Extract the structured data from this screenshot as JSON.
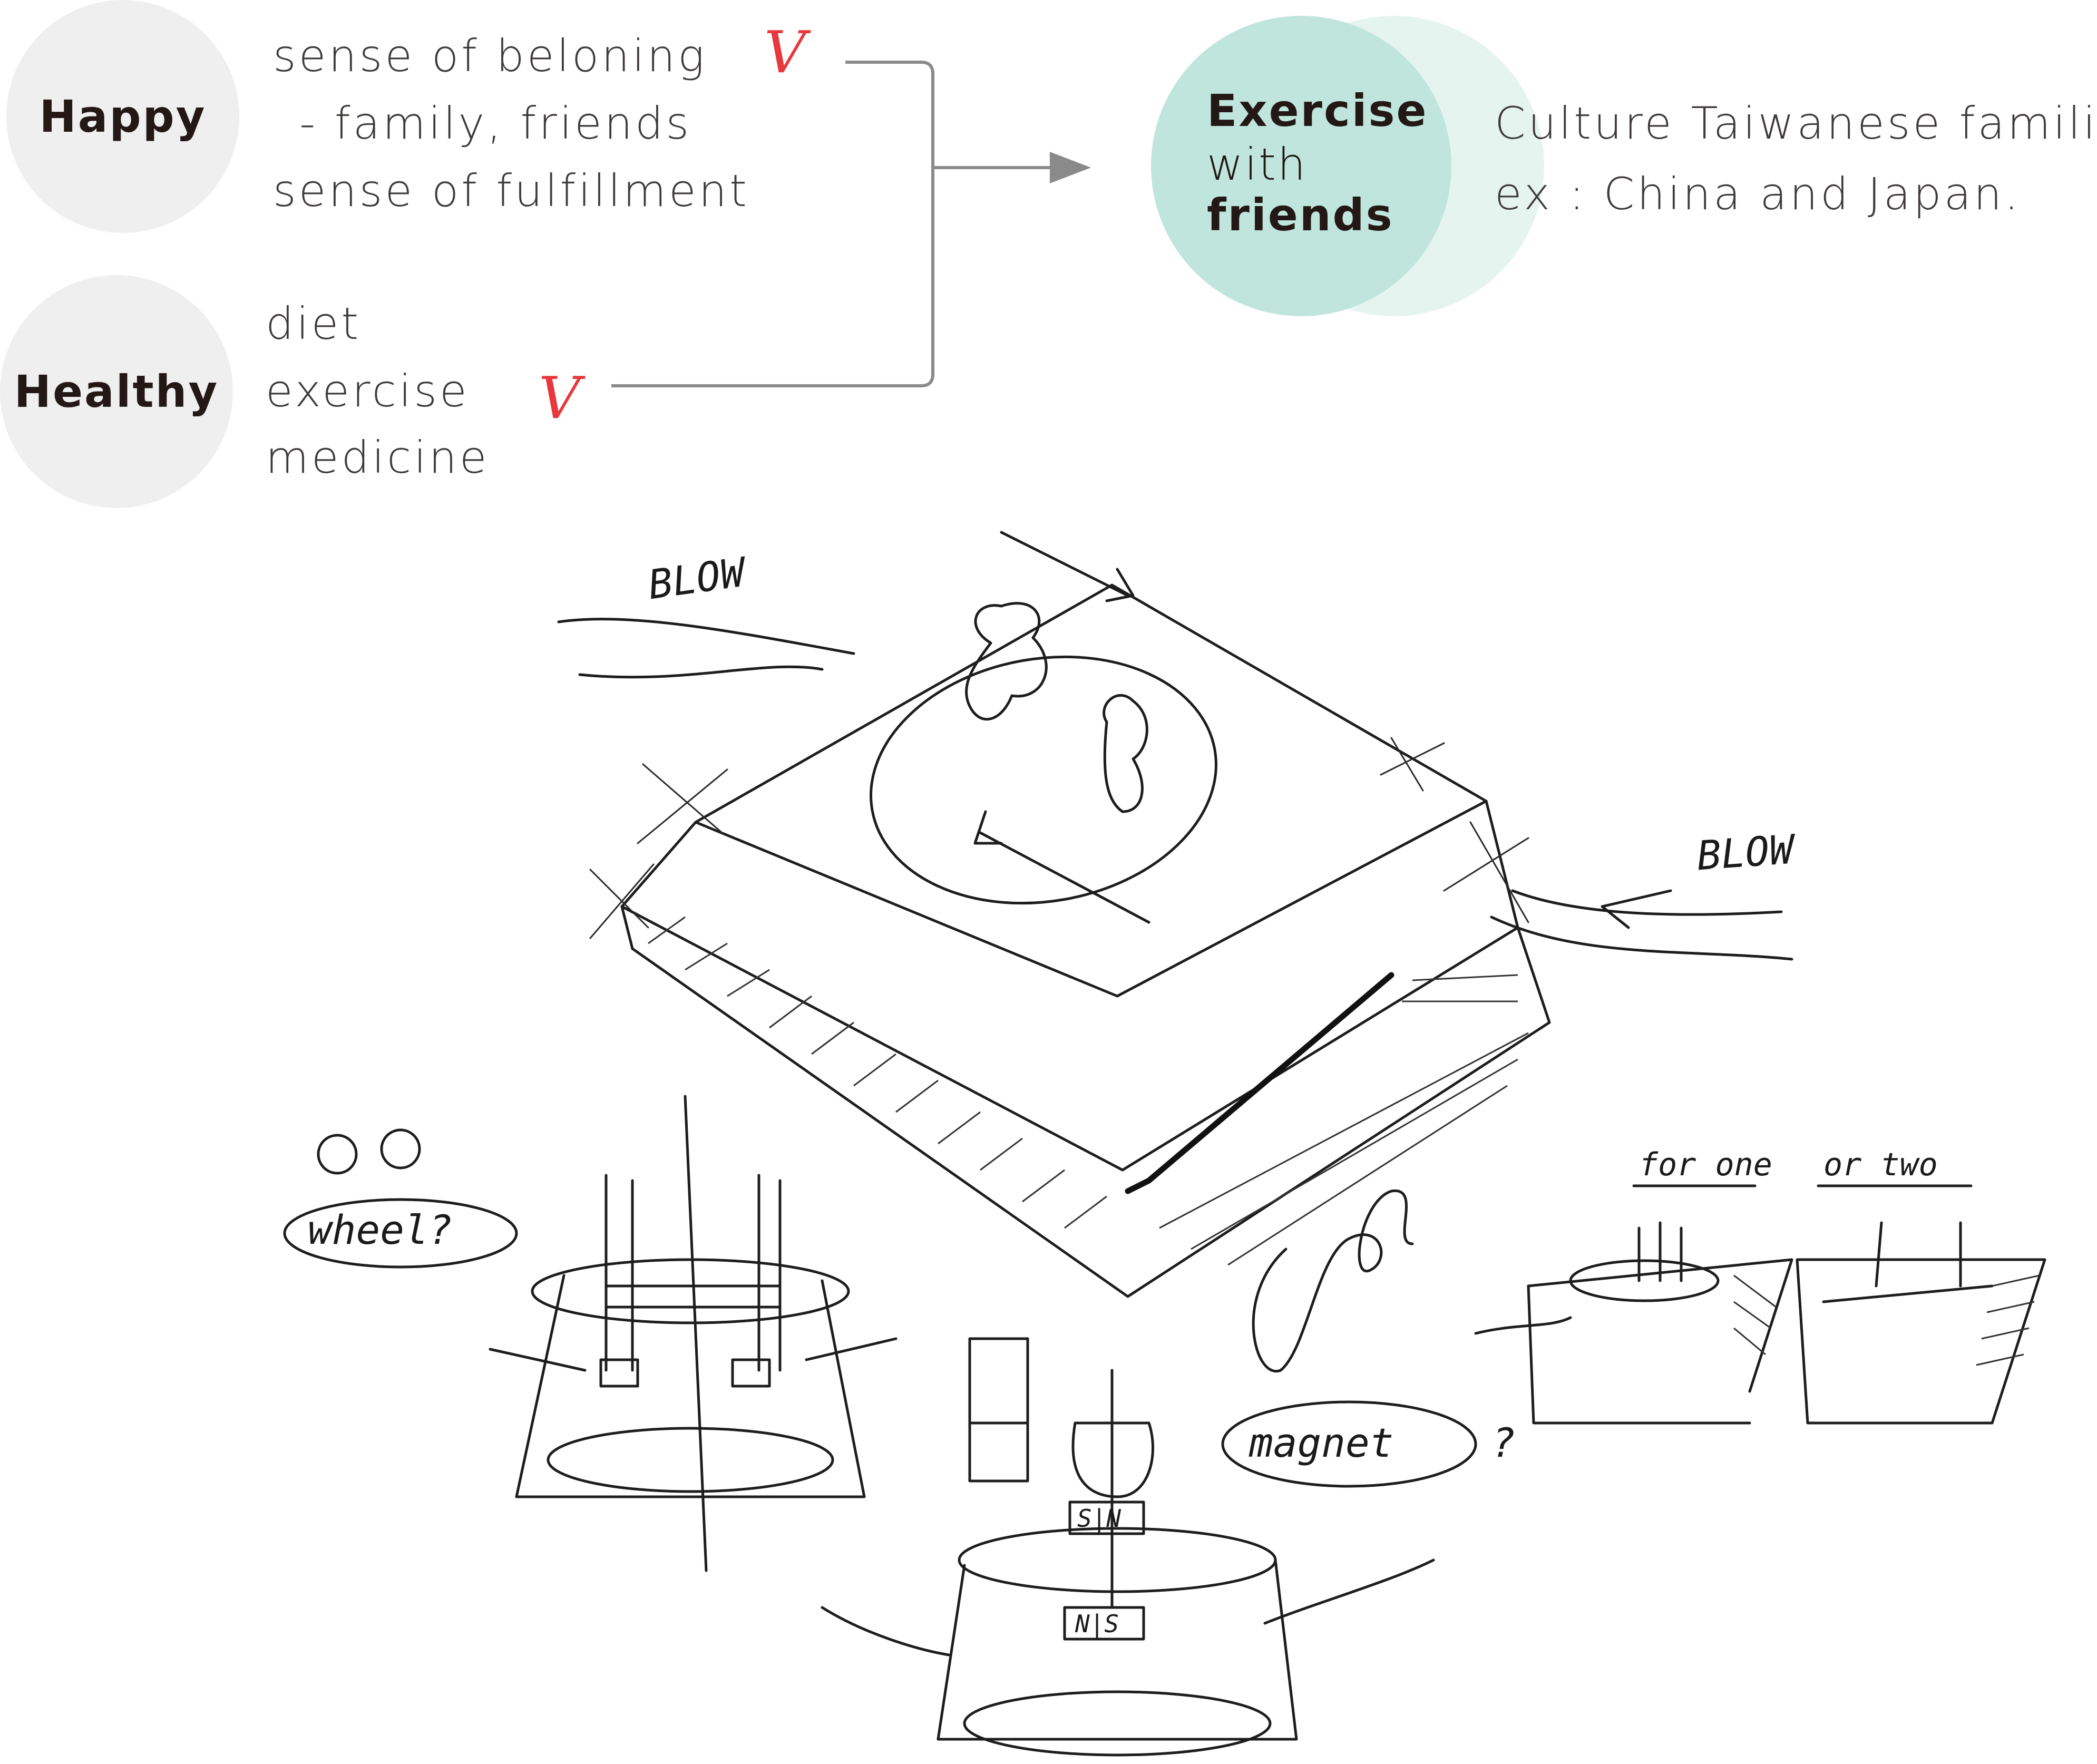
{
  "concept": {
    "happy": {
      "label": "Happy",
      "lines": [
        "sense of beloning",
        "- family, friends",
        "sense of fulfillment"
      ],
      "check": "V"
    },
    "healthy": {
      "label": "Healthy",
      "lines": [
        "diet",
        "exercise",
        "medicine"
      ],
      "check": "V"
    },
    "result": {
      "line1": "Exercise",
      "line2": "with",
      "line3": "friends"
    },
    "culture_note": [
      "Culture Taiwanese familiar,",
      "ex : China and Japan."
    ]
  },
  "sketch_labels": {
    "blow_left": "BLOW",
    "blow_right": "BLOW",
    "wheel": "wheel?",
    "magnet": "magnet",
    "magnet_q": "?",
    "for_one": "for one",
    "or_two": "or two",
    "sn": "S|N",
    "ns": "N|S"
  },
  "colors": {
    "tag_circle": "#efefef",
    "result_circle": "#bfe5dc",
    "result_circle_overlay": "#e6f4f0",
    "check_red": "#e8383d",
    "arrow_gray": "#8a8a8a"
  }
}
